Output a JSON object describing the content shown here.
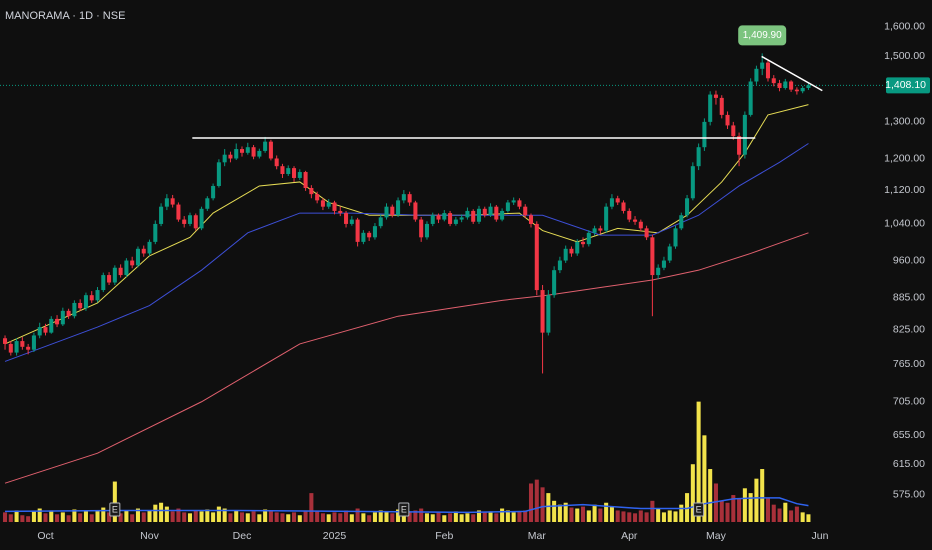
{
  "chart_data": {
    "type": "candlestick",
    "title": "MANORAMA · 1D · NSE",
    "log_scale": true,
    "grid": false,
    "up_color": "#089981",
    "down_color": "#f23645",
    "volume_up_color": "#f2e34b",
    "volume_down_color": "#a8303a",
    "xlim": [
      -0.87,
      149.65
    ],
    "ylim": [
      542,
      1697
    ],
    "vlim": [
      0,
      135
    ],
    "xticks": [
      {
        "value": 7,
        "label": "Oct"
      },
      {
        "value": 25,
        "label": "Nov"
      },
      {
        "value": 41,
        "label": "Dec"
      },
      {
        "value": 57,
        "label": "2025"
      },
      {
        "value": 76,
        "label": "Feb"
      },
      {
        "value": 92,
        "label": "Mar"
      },
      {
        "value": 108,
        "label": "Apr"
      },
      {
        "value": 123,
        "label": "May"
      },
      {
        "value": 141,
        "label": "Jun"
      }
    ],
    "yticks": [
      {
        "value": 1600,
        "label": "1,600.00"
      },
      {
        "value": 1500,
        "label": "1,500.00"
      },
      {
        "value": 1300,
        "label": "1,300.00"
      },
      {
        "value": 1200,
        "label": "1,200.00"
      },
      {
        "value": 1120,
        "label": "1,120.00"
      },
      {
        "value": 1040,
        "label": "1,040.00"
      },
      {
        "value": 960,
        "label": "960.00"
      },
      {
        "value": 885,
        "label": "885.00"
      },
      {
        "value": 825,
        "label": "825.00"
      },
      {
        "value": 765,
        "label": "765.00"
      },
      {
        "value": 705,
        "label": "705.00"
      },
      {
        "value": 655,
        "label": "655.00"
      },
      {
        "value": 615,
        "label": "615.00"
      },
      {
        "value": 575,
        "label": "575.00"
      }
    ],
    "ohlc": [
      [
        810,
        815,
        790,
        800
      ],
      [
        800,
        805,
        780,
        785
      ],
      [
        785,
        810,
        780,
        805
      ],
      [
        805,
        812,
        790,
        795
      ],
      [
        795,
        800,
        782,
        790
      ],
      [
        790,
        820,
        786,
        815
      ],
      [
        815,
        838,
        810,
        830
      ],
      [
        830,
        836,
        815,
        820
      ],
      [
        820,
        850,
        818,
        845
      ],
      [
        845,
        852,
        830,
        835
      ],
      [
        835,
        866,
        832,
        860
      ],
      [
        860,
        864,
        845,
        850
      ],
      [
        850,
        880,
        846,
        875
      ],
      [
        875,
        882,
        860,
        865
      ],
      [
        865,
        895,
        860,
        890
      ],
      [
        890,
        898,
        875,
        880
      ],
      [
        880,
        906,
        876,
        900
      ],
      [
        900,
        935,
        896,
        930
      ],
      [
        930,
        936,
        910,
        915
      ],
      [
        915,
        950,
        910,
        945
      ],
      [
        945,
        952,
        925,
        930
      ],
      [
        930,
        965,
        926,
        960
      ],
      [
        960,
        968,
        944,
        950
      ],
      [
        950,
        990,
        946,
        985
      ],
      [
        985,
        992,
        968,
        975
      ],
      [
        975,
        1005,
        970,
        1000
      ],
      [
        1000,
        1048,
        995,
        1040
      ],
      [
        1040,
        1088,
        1035,
        1080
      ],
      [
        1080,
        1110,
        1072,
        1100
      ],
      [
        1100,
        1108,
        1078,
        1085
      ],
      [
        1085,
        1090,
        1045,
        1050
      ],
      [
        1050,
        1058,
        1032,
        1040
      ],
      [
        1040,
        1066,
        1035,
        1060
      ],
      [
        1060,
        1064,
        1025,
        1030
      ],
      [
        1030,
        1080,
        1026,
        1075
      ],
      [
        1075,
        1105,
        1070,
        1100
      ],
      [
        1100,
        1136,
        1095,
        1130
      ],
      [
        1130,
        1198,
        1126,
        1190
      ],
      [
        1190,
        1225,
        1180,
        1210
      ],
      [
        1210,
        1218,
        1190,
        1200
      ],
      [
        1200,
        1240,
        1196,
        1225
      ],
      [
        1225,
        1232,
        1205,
        1215
      ],
      [
        1215,
        1242,
        1210,
        1230
      ],
      [
        1230,
        1236,
        1198,
        1205
      ],
      [
        1205,
        1226,
        1200,
        1220
      ],
      [
        1220,
        1258,
        1215,
        1245
      ],
      [
        1245,
        1250,
        1195,
        1200
      ],
      [
        1200,
        1208,
        1172,
        1180
      ],
      [
        1180,
        1186,
        1150,
        1160
      ],
      [
        1160,
        1182,
        1155,
        1175
      ],
      [
        1175,
        1180,
        1140,
        1150
      ],
      [
        1150,
        1172,
        1145,
        1165
      ],
      [
        1165,
        1168,
        1118,
        1125
      ],
      [
        1125,
        1132,
        1100,
        1110
      ],
      [
        1110,
        1116,
        1088,
        1095
      ],
      [
        1095,
        1100,
        1072,
        1080
      ],
      [
        1080,
        1098,
        1075,
        1090
      ],
      [
        1090,
        1094,
        1062,
        1070
      ],
      [
        1070,
        1080,
        1058,
        1065
      ],
      [
        1065,
        1070,
        1032,
        1040
      ],
      [
        1040,
        1058,
        1036,
        1050
      ],
      [
        1050,
        1054,
        990,
        1000
      ],
      [
        1000,
        1026,
        995,
        1020
      ],
      [
        1020,
        1024,
        1002,
        1010
      ],
      [
        1010,
        1042,
        1005,
        1035
      ],
      [
        1035,
        1062,
        1030,
        1055
      ],
      [
        1055,
        1088,
        1050,
        1080
      ],
      [
        1080,
        1085,
        1055,
        1060
      ],
      [
        1060,
        1102,
        1056,
        1095
      ],
      [
        1095,
        1120,
        1088,
        1110
      ],
      [
        1110,
        1116,
        1082,
        1090
      ],
      [
        1090,
        1094,
        1045,
        1050
      ],
      [
        1050,
        1056,
        1000,
        1010
      ],
      [
        1010,
        1046,
        1005,
        1040
      ],
      [
        1040,
        1066,
        1035,
        1060
      ],
      [
        1060,
        1064,
        1042,
        1050
      ],
      [
        1050,
        1072,
        1046,
        1065
      ],
      [
        1065,
        1070,
        1035,
        1040
      ],
      [
        1040,
        1056,
        1036,
        1050
      ],
      [
        1050,
        1062,
        1044,
        1055
      ],
      [
        1055,
        1078,
        1050,
        1070
      ],
      [
        1070,
        1074,
        1040,
        1045
      ],
      [
        1045,
        1082,
        1040,
        1075
      ],
      [
        1075,
        1080,
        1055,
        1060
      ],
      [
        1060,
        1088,
        1056,
        1080
      ],
      [
        1080,
        1084,
        1045,
        1050
      ],
      [
        1050,
        1076,
        1046,
        1070
      ],
      [
        1070,
        1096,
        1066,
        1090
      ],
      [
        1090,
        1102,
        1084,
        1095
      ],
      [
        1095,
        1100,
        1074,
        1080
      ],
      [
        1080,
        1086,
        1054,
        1060
      ],
      [
        1060,
        1064,
        1032,
        1040
      ],
      [
        1040,
        1046,
        890,
        900
      ],
      [
        900,
        910,
        750,
        820
      ],
      [
        820,
        900,
        815,
        890
      ],
      [
        890,
        948,
        885,
        940
      ],
      [
        940,
        968,
        934,
        960
      ],
      [
        960,
        992,
        955,
        985
      ],
      [
        985,
        990,
        968,
        975
      ],
      [
        975,
        1006,
        970,
        1000
      ],
      [
        1000,
        1010,
        988,
        995
      ],
      [
        995,
        1026,
        990,
        1020
      ],
      [
        1020,
        1036,
        1014,
        1030
      ],
      [
        1030,
        1036,
        1018,
        1025
      ],
      [
        1025,
        1088,
        1020,
        1080
      ],
      [
        1080,
        1110,
        1074,
        1100
      ],
      [
        1100,
        1106,
        1084,
        1090
      ],
      [
        1090,
        1095,
        1064,
        1070
      ],
      [
        1070,
        1076,
        1044,
        1050
      ],
      [
        1050,
        1058,
        1038,
        1045
      ],
      [
        1045,
        1050,
        1024,
        1030
      ],
      [
        1030,
        1036,
        1004,
        1010
      ],
      [
        1010,
        1016,
        850,
        930
      ],
      [
        930,
        952,
        922,
        945
      ],
      [
        945,
        968,
        940,
        960
      ],
      [
        960,
        996,
        955,
        990
      ],
      [
        990,
        1036,
        985,
        1030
      ],
      [
        1030,
        1066,
        1026,
        1060
      ],
      [
        1060,
        1108,
        1055,
        1100
      ],
      [
        1100,
        1190,
        1095,
        1180
      ],
      [
        1180,
        1240,
        1170,
        1230
      ],
      [
        1230,
        1310,
        1220,
        1300
      ],
      [
        1300,
        1390,
        1290,
        1380
      ],
      [
        1380,
        1392,
        1350,
        1370
      ],
      [
        1370,
        1378,
        1310,
        1320
      ],
      [
        1320,
        1330,
        1280,
        1290
      ],
      [
        1290,
        1300,
        1250,
        1260
      ],
      [
        1260,
        1270,
        1180,
        1210
      ],
      [
        1210,
        1330,
        1200,
        1320
      ],
      [
        1320,
        1430,
        1315,
        1420
      ],
      [
        1420,
        1470,
        1410,
        1460
      ],
      [
        1460,
        1510,
        1440,
        1480
      ],
      [
        1480,
        1486,
        1420,
        1430
      ],
      [
        1430,
        1440,
        1405,
        1415
      ],
      [
        1415,
        1425,
        1390,
        1400
      ],
      [
        1400,
        1428,
        1395,
        1420
      ],
      [
        1420,
        1424,
        1388,
        1395
      ],
      [
        1395,
        1402,
        1380,
        1390
      ],
      [
        1390,
        1406,
        1384,
        1400
      ],
      [
        1400,
        1415,
        1394,
        1408.1
      ]
    ],
    "volume": [
      10,
      8,
      12,
      7,
      6,
      11,
      14,
      9,
      12,
      8,
      10,
      7,
      13,
      9,
      11,
      8,
      12,
      15,
      10,
      42,
      9,
      12,
      8,
      14,
      10,
      12,
      18,
      20,
      16,
      11,
      14,
      10,
      9,
      12,
      11,
      13,
      10,
      16,
      14,
      9,
      12,
      10,
      9,
      11,
      8,
      13,
      12,
      10,
      9,
      8,
      10,
      7,
      12,
      30,
      11,
      9,
      8,
      10,
      9,
      12,
      8,
      14,
      9,
      7,
      10,
      12,
      11,
      9,
      13,
      18,
      10,
      12,
      14,
      9,
      8,
      10,
      7,
      9,
      11,
      8,
      9,
      8,
      12,
      10,
      11,
      9,
      14,
      12,
      10,
      11,
      12,
      40,
      44,
      36,
      30,
      22,
      18,
      20,
      15,
      14,
      16,
      12,
      18,
      14,
      20,
      16,
      12,
      11,
      10,
      9,
      12,
      10,
      22,
      14,
      10,
      12,
      11,
      18,
      30,
      60,
      125,
      90,
      55,
      40,
      22,
      20,
      28,
      24,
      35,
      30,
      45,
      55,
      25,
      18,
      14,
      20,
      12,
      16,
      10,
      8
    ],
    "moving_averages": [
      {
        "color": "#e6dc55",
        "x": [
          0,
          16,
          25,
          32,
          36,
          44,
          51,
          56,
          63,
          72,
          80,
          89,
          93,
          99,
          106,
          113,
          118,
          124,
          128,
          132,
          139
        ],
        "values": [
          800,
          875,
          970,
          1010,
          1065,
          1130,
          1140,
          1090,
          1060,
          1060,
          1060,
          1065,
          1025,
          1000,
          1030,
          1020,
          1060,
          1140,
          1215,
          1320,
          1350
        ]
      },
      {
        "color": "#3d4fd6",
        "x": [
          0,
          16,
          25,
          34,
          42,
          51,
          60,
          72,
          86,
          93,
          103,
          112,
          120,
          127,
          134,
          139
        ],
        "values": [
          770,
          830,
          870,
          940,
          1020,
          1065,
          1065,
          1060,
          1060,
          1060,
          1015,
          1015,
          1060,
          1130,
          1190,
          1240
        ]
      },
      {
        "color": "#e0606e",
        "x": [
          0,
          16,
          34,
          51,
          68,
          86,
          94,
          103,
          112,
          120,
          129,
          139
        ],
        "values": [
          590,
          630,
          705,
          800,
          850,
          880,
          890,
          905,
          920,
          940,
          975,
          1020
        ]
      }
    ],
    "volume_ma": {
      "color": "#2f63f0",
      "x": [
        0,
        20,
        40,
        60,
        80,
        90,
        93,
        100,
        110,
        118,
        121,
        126,
        130,
        134,
        137,
        139
      ],
      "values": [
        11,
        12,
        12,
        11,
        10,
        11,
        16,
        18,
        14,
        14,
        19,
        24,
        25,
        25,
        19,
        17
      ]
    },
    "lines": [
      {
        "color": "#ffffff",
        "x": [
          32.4,
          129.8
        ],
        "values": [
          1255,
          1255
        ]
      },
      {
        "color": "#ffffff",
        "x": [
          130.9,
          141.4
        ],
        "values": [
          1500,
          1392
        ]
      }
    ],
    "events": {
      "label": "E",
      "x": [
        19,
        69,
        120
      ]
    },
    "annotation": {
      "text": "1,409.90",
      "x": 131,
      "color": "#7cc47f"
    },
    "last_price": {
      "value": 1408.1,
      "label": "1,408.10",
      "color": "#089981"
    }
  }
}
